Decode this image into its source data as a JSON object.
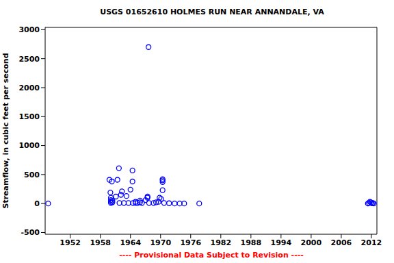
{
  "chart_data": {
    "type": "scatter",
    "title": "USGS 01652610 HOLMES RUN NEAR ANNANDALE, VA",
    "y_label": "Streamflow, in cubic feet per second",
    "annotation": "---- Provisional Data Subject to Revision ----",
    "x": [
      1947.6,
      1959.8,
      1960.3,
      1960.0,
      1960.1,
      1960.1,
      1960.1,
      1960.1,
      1960.4,
      1960.4,
      1961.1,
      1961.4,
      1961.7,
      1961.8,
      1962.1,
      1962.3,
      1962.7,
      1963.2,
      1963.6,
      1964.0,
      1964.4,
      1964.4,
      1964.5,
      1965.0,
      1965.0,
      1965.4,
      1965.9,
      1965.9,
      1966.3,
      1967.0,
      1967.4,
      1967.4,
      1967.6,
      1967.7,
      1968.6,
      1969.1,
      1969.6,
      1969.8,
      1970.1,
      1970.4,
      1970.4,
      1970.4,
      1970.4,
      1970.7,
      1971.7,
      1972.8,
      1973.8,
      1974.7,
      1977.7,
      2011.3,
      2011.5,
      2011.7,
      2011.9,
      2012.1,
      2012.3,
      2012.5
    ],
    "values": [
      0,
      410,
      380,
      190,
      100,
      60,
      30,
      10,
      50,
      20,
      120,
      410,
      610,
      10,
      150,
      210,
      10,
      130,
      10,
      240,
      570,
      380,
      10,
      10,
      30,
      10,
      50,
      20,
      10,
      60,
      120,
      100,
      2700,
      10,
      10,
      20,
      30,
      100,
      80,
      370,
      420,
      400,
      230,
      10,
      5,
      0,
      0,
      0,
      0,
      0,
      10,
      30,
      20,
      5,
      10,
      0
    ],
    "color": "#0000ff",
    "marker": "open_circle",
    "xlim": [
      1947,
      2013.1
    ],
    "xticks": [
      1952,
      1958,
      1964,
      1970,
      1976,
      1982,
      1988,
      1994,
      2000,
      2006,
      2012
    ],
    "ylim": [
      -530,
      3040
    ],
    "yticks": [
      -500,
      0,
      500,
      1000,
      1500,
      2000,
      2500,
      3000
    ],
    "grid": false
  }
}
